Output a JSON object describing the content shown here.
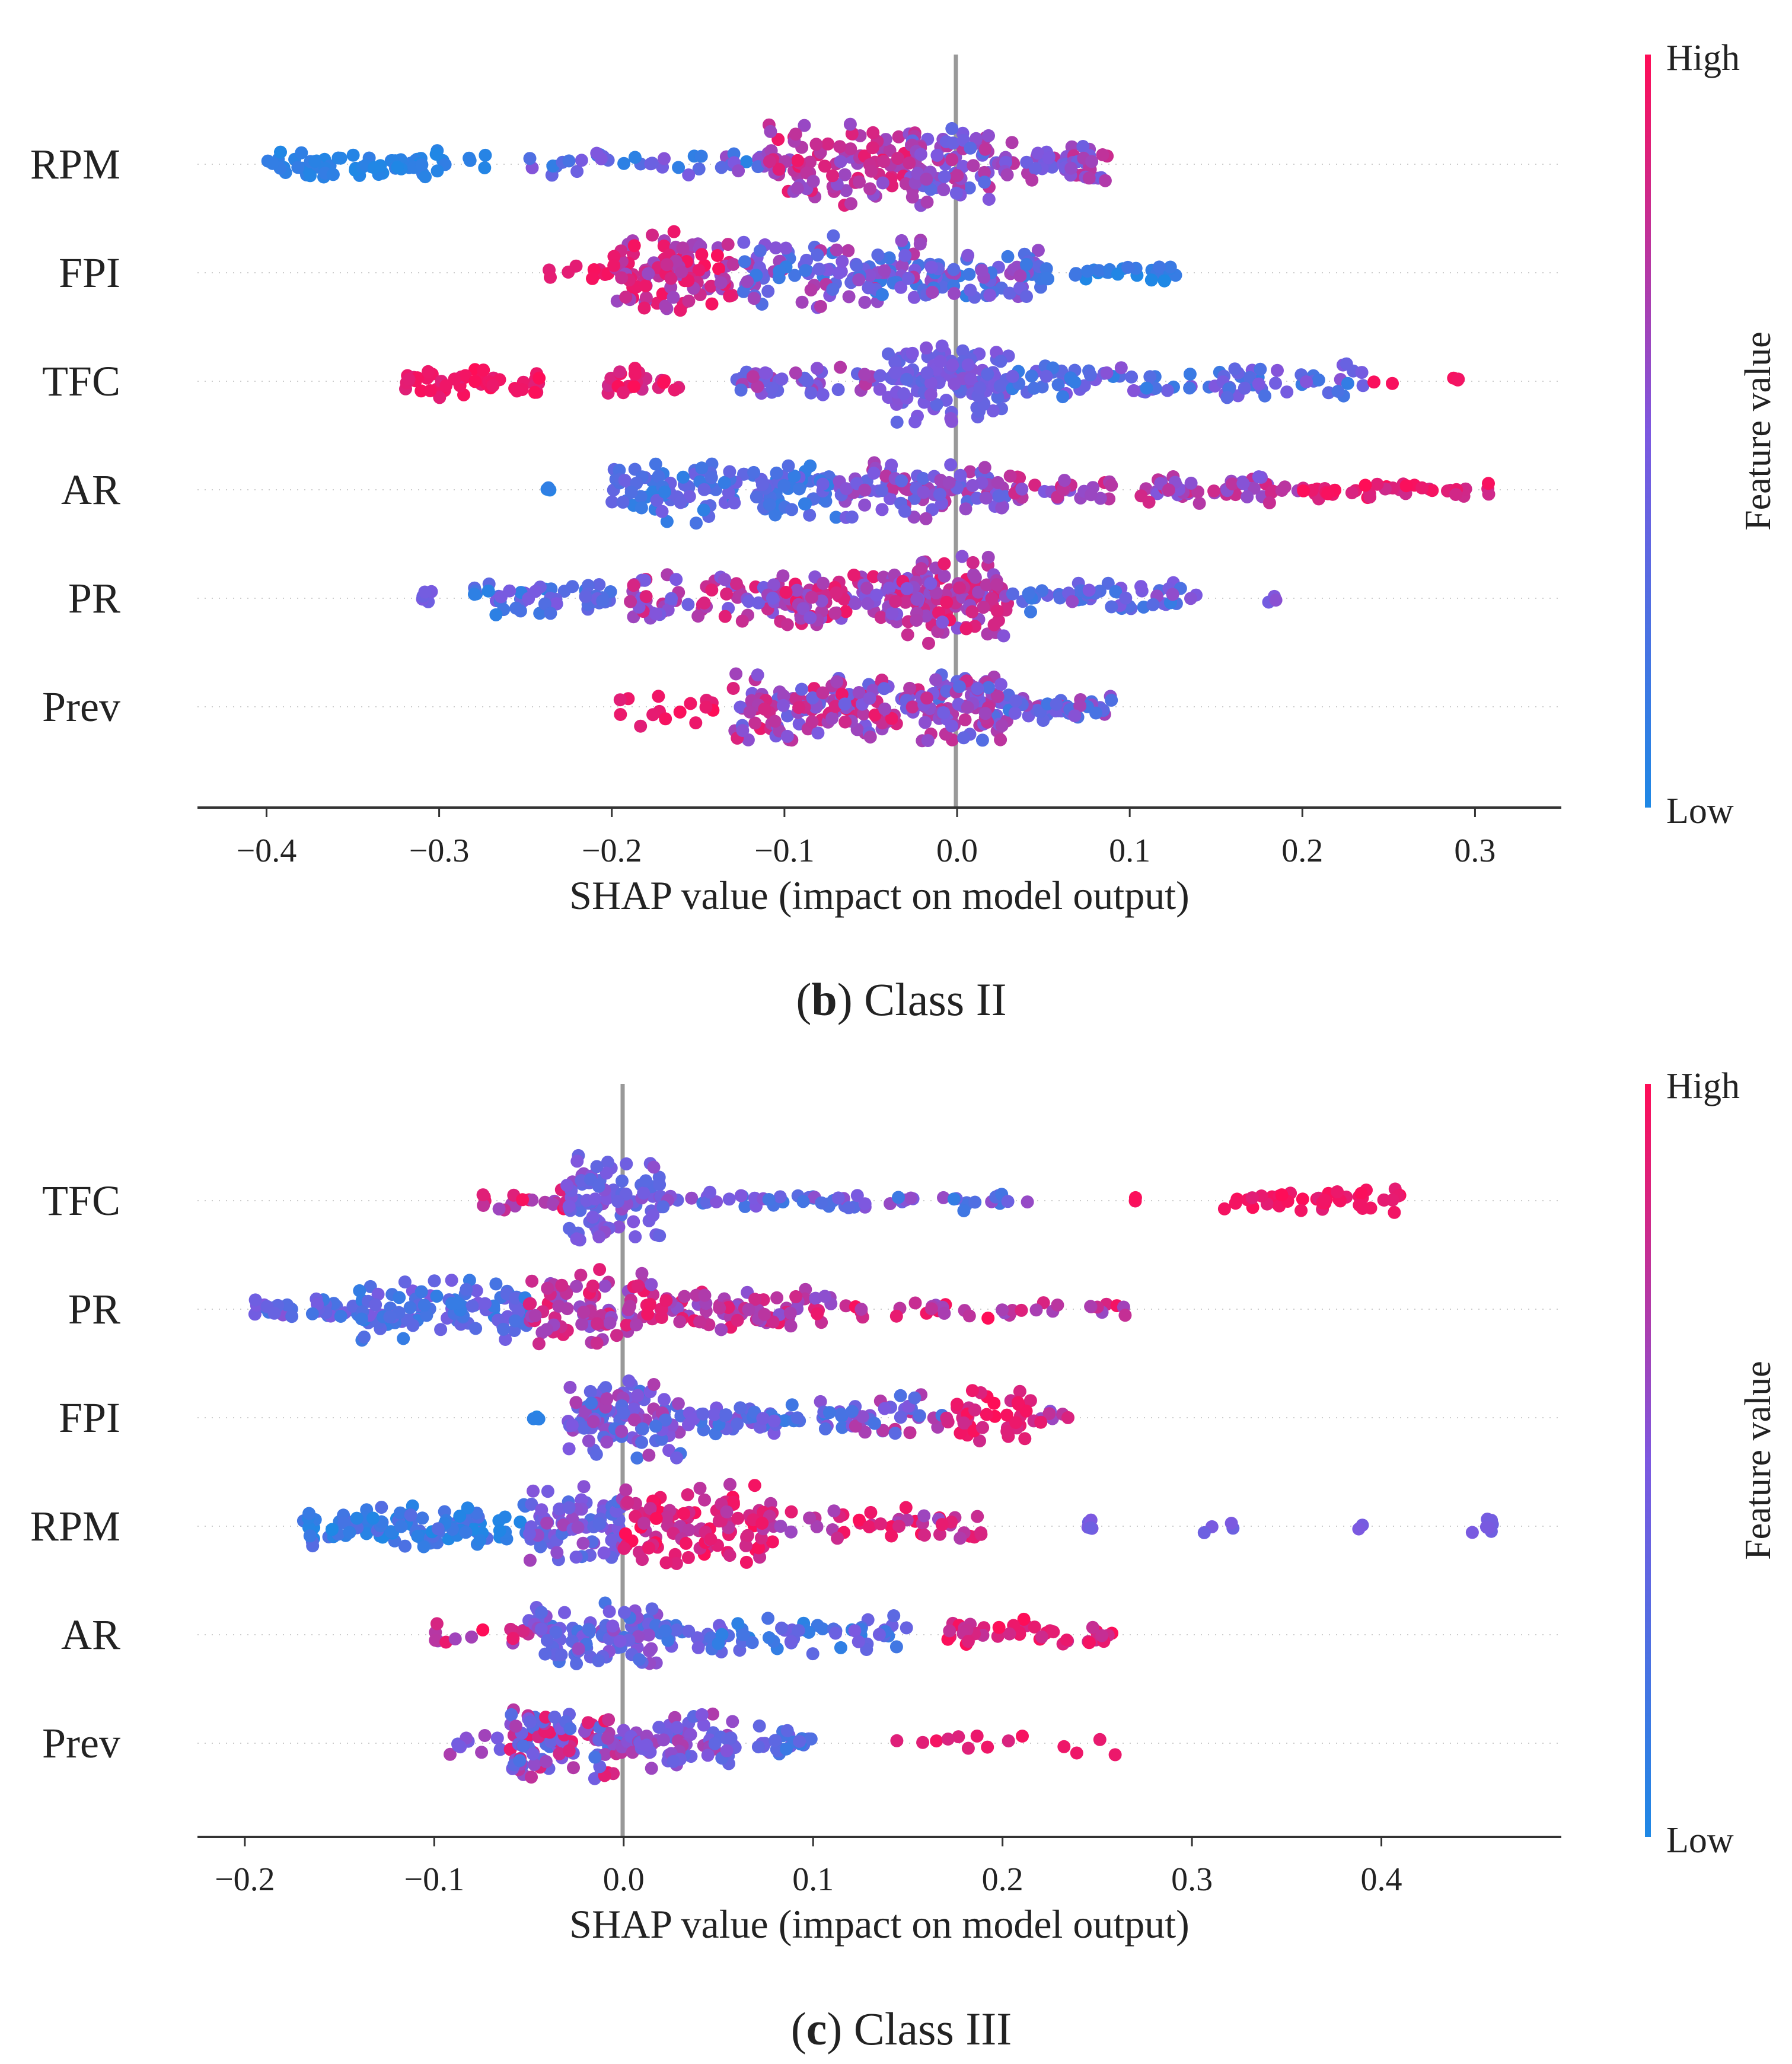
{
  "colors": {
    "low": "#1e88e5",
    "high": "#ff0d57",
    "zero_line": "#999999"
  },
  "chart_data": [
    {
      "type": "scatter",
      "subtype": "shap-beeswarm",
      "caption_letter": "b",
      "caption_text": ") Class II",
      "caption_open": "(",
      "xlabel": "SHAP value (impact on model output)",
      "xlim": [
        -0.44,
        0.35
      ],
      "xticks": [
        "−0.4",
        "−0.3",
        "−0.2",
        "−0.1",
        "0.0",
        "0.1",
        "0.2",
        "0.3"
      ],
      "xtick_values": [
        -0.4,
        -0.3,
        -0.2,
        -0.1,
        0.0,
        0.1,
        0.2,
        0.3
      ],
      "colorbar": {
        "title": "Feature value",
        "high": "High",
        "low": "Low"
      },
      "features": [
        {
          "name": "RPM",
          "segments": [
            {
              "from": -0.405,
              "to": -0.27,
              "n": 70,
              "w": 0.35,
              "c": [
                0.0,
                0.12
              ]
            },
            {
              "from": -0.25,
              "to": -0.1,
              "n": 45,
              "w": 0.3,
              "c": [
                0.05,
                0.6
              ]
            },
            {
              "from": -0.11,
              "to": -0.02,
              "n": 110,
              "w": 1.0,
              "c": [
                0.55,
                0.95
              ]
            },
            {
              "from": -0.03,
              "to": 0.02,
              "n": 70,
              "w": 0.9,
              "c": [
                0.3,
                0.8
              ]
            },
            {
              "from": 0.02,
              "to": 0.088,
              "n": 55,
              "w": 0.5,
              "c": [
                0.4,
                0.8
              ]
            }
          ]
        },
        {
          "name": "FPI",
          "segments": [
            {
              "from": -0.24,
              "to": -0.2,
              "n": 10,
              "w": 0.2,
              "c": [
                0.85,
                1.0
              ]
            },
            {
              "from": -0.2,
              "to": -0.13,
              "n": 110,
              "w": 0.95,
              "c": [
                0.6,
                0.98
              ]
            },
            {
              "from": -0.13,
              "to": -0.02,
              "n": 110,
              "w": 0.85,
              "c": [
                0.1,
                0.75
              ]
            },
            {
              "from": -0.02,
              "to": 0.05,
              "n": 70,
              "w": 0.65,
              "c": [
                0.1,
                0.65
              ]
            },
            {
              "from": 0.05,
              "to": 0.13,
              "n": 28,
              "w": 0.2,
              "c": [
                0.0,
                0.2
              ]
            }
          ]
        },
        {
          "name": "TFC",
          "segments": [
            {
              "from": -0.32,
              "to": -0.24,
              "n": 50,
              "w": 0.4,
              "c": [
                0.88,
                1.0
              ]
            },
            {
              "from": -0.21,
              "to": -0.16,
              "n": 25,
              "w": 0.35,
              "c": [
                0.8,
                1.0
              ]
            },
            {
              "from": -0.13,
              "to": -0.04,
              "n": 45,
              "w": 0.35,
              "c": [
                0.3,
                0.75
              ]
            },
            {
              "from": -0.04,
              "to": 0.03,
              "n": 130,
              "w": 1.0,
              "c": [
                0.3,
                0.55
              ]
            },
            {
              "from": 0.03,
              "to": 0.24,
              "n": 90,
              "w": 0.4,
              "c": [
                0.1,
                0.55
              ]
            },
            {
              "from": 0.24,
              "to": 0.3,
              "n": 5,
              "w": 0.1,
              "c": [
                0.95,
                1.0
              ]
            }
          ]
        },
        {
          "name": "AR",
          "segments": [
            {
              "from": -0.24,
              "to": -0.23,
              "n": 3,
              "w": 0.15,
              "c": [
                0.05,
                0.15
              ]
            },
            {
              "from": -0.2,
              "to": -0.07,
              "n": 130,
              "w": 0.8,
              "c": [
                0.08,
                0.45
              ]
            },
            {
              "from": -0.07,
              "to": 0.03,
              "n": 100,
              "w": 0.75,
              "c": [
                0.3,
                0.75
              ]
            },
            {
              "from": 0.03,
              "to": 0.2,
              "n": 80,
              "w": 0.35,
              "c": [
                0.5,
                0.85
              ]
            },
            {
              "from": 0.2,
              "to": 0.31,
              "n": 40,
              "w": 0.22,
              "c": [
                0.8,
                1.0
              ]
            }
          ]
        },
        {
          "name": "PR",
          "segments": [
            {
              "from": -0.31,
              "to": -0.3,
              "n": 6,
              "w": 0.2,
              "c": [
                0.4,
                0.5
              ]
            },
            {
              "from": -0.28,
              "to": -0.2,
              "n": 55,
              "w": 0.4,
              "c": [
                0.05,
                0.5
              ]
            },
            {
              "from": -0.19,
              "to": -0.1,
              "n": 70,
              "w": 0.55,
              "c": [
                0.4,
                0.9
              ]
            },
            {
              "from": -0.1,
              "to": -0.04,
              "n": 70,
              "w": 0.7,
              "c": [
                0.5,
                0.95
              ]
            },
            {
              "from": -0.04,
              "to": 0.03,
              "n": 120,
              "w": 1.0,
              "c": [
                0.5,
                0.95
              ]
            },
            {
              "from": 0.03,
              "to": 0.14,
              "n": 55,
              "w": 0.35,
              "c": [
                0.1,
                0.6
              ]
            },
            {
              "from": 0.18,
              "to": 0.19,
              "n": 3,
              "w": 0.12,
              "c": [
                0.45,
                0.6
              ]
            }
          ]
        },
        {
          "name": "Prev",
          "segments": [
            {
              "from": -0.205,
              "to": -0.14,
              "n": 16,
              "w": 0.45,
              "c": [
                0.88,
                1.0
              ]
            },
            {
              "from": -0.13,
              "to": -0.02,
              "n": 140,
              "w": 0.8,
              "c": [
                0.35,
                0.95
              ]
            },
            {
              "from": -0.02,
              "to": 0.03,
              "n": 90,
              "w": 0.85,
              "c": [
                0.25,
                0.8
              ]
            },
            {
              "from": 0.03,
              "to": 0.09,
              "n": 45,
              "w": 0.35,
              "c": [
                0.15,
                0.7
              ]
            }
          ]
        }
      ]
    },
    {
      "type": "scatter",
      "subtype": "shap-beeswarm",
      "caption_letter": "c",
      "caption_text": ") Class III",
      "caption_open": "(",
      "xlabel": "SHAP value (impact on model output)",
      "xlim": [
        -0.225,
        0.495
      ],
      "xticks": [
        "−0.2",
        "−0.1",
        "0.0",
        "0.1",
        "0.2",
        "0.3",
        "0.4"
      ],
      "xtick_values": [
        -0.2,
        -0.1,
        0.0,
        0.1,
        0.2,
        0.3,
        0.4
      ],
      "colorbar": {
        "title": "Feature value",
        "high": "High",
        "low": "Low"
      },
      "features": [
        {
          "name": "TFC",
          "segments": [
            {
              "from": -0.075,
              "to": -0.03,
              "n": 20,
              "w": 0.25,
              "c": [
                0.6,
                1.0
              ]
            },
            {
              "from": -0.03,
              "to": 0.02,
              "n": 90,
              "w": 1.0,
              "c": [
                0.3,
                0.6
              ]
            },
            {
              "from": 0.02,
              "to": 0.22,
              "n": 60,
              "w": 0.25,
              "c": [
                0.1,
                0.6
              ]
            },
            {
              "from": 0.27,
              "to": 0.271,
              "n": 2,
              "w": 0.1,
              "c": [
                0.95,
                1.0
              ]
            },
            {
              "from": 0.31,
              "to": 0.41,
              "n": 45,
              "w": 0.35,
              "c": [
                0.88,
                1.0
              ]
            }
          ]
        },
        {
          "name": "PR",
          "segments": [
            {
              "from": -0.195,
              "to": -0.14,
              "n": 35,
              "w": 0.25,
              "c": [
                0.15,
                0.55
              ]
            },
            {
              "from": -0.14,
              "to": -0.05,
              "n": 110,
              "w": 0.75,
              "c": [
                0.08,
                0.5
              ]
            },
            {
              "from": -0.05,
              "to": 0.02,
              "n": 90,
              "w": 0.95,
              "c": [
                0.5,
                0.95
              ]
            },
            {
              "from": 0.02,
              "to": 0.12,
              "n": 80,
              "w": 0.5,
              "c": [
                0.55,
                0.95
              ]
            },
            {
              "from": 0.12,
              "to": 0.265,
              "n": 35,
              "w": 0.25,
              "c": [
                0.6,
                1.0
              ]
            }
          ]
        },
        {
          "name": "FPI",
          "segments": [
            {
              "from": -0.05,
              "to": -0.04,
              "n": 3,
              "w": 0.1,
              "c": [
                0.0,
                0.1
              ]
            },
            {
              "from": -0.03,
              "to": 0.03,
              "n": 110,
              "w": 0.95,
              "c": [
                0.2,
                0.7
              ]
            },
            {
              "from": 0.03,
              "to": 0.12,
              "n": 60,
              "w": 0.4,
              "c": [
                0.1,
                0.6
              ]
            },
            {
              "from": 0.12,
              "to": 0.17,
              "n": 35,
              "w": 0.55,
              "c": [
                0.2,
                0.8
              ]
            },
            {
              "from": 0.17,
              "to": 0.215,
              "n": 40,
              "w": 0.7,
              "c": [
                0.8,
                1.0
              ]
            },
            {
              "from": 0.215,
              "to": 0.235,
              "n": 8,
              "w": 0.2,
              "c": [
                0.5,
                0.95
              ]
            }
          ]
        },
        {
          "name": "RPM",
          "segments": [
            {
              "from": -0.17,
              "to": -0.05,
              "n": 110,
              "w": 0.5,
              "c": [
                0.0,
                0.3
              ]
            },
            {
              "from": -0.05,
              "to": 0.0,
              "n": 80,
              "w": 0.9,
              "c": [
                0.25,
                0.65
              ]
            },
            {
              "from": 0.0,
              "to": 0.08,
              "n": 110,
              "w": 0.95,
              "c": [
                0.7,
                1.0
              ]
            },
            {
              "from": 0.08,
              "to": 0.19,
              "n": 45,
              "w": 0.45,
              "c": [
                0.6,
                1.0
              ]
            },
            {
              "from": 0.245,
              "to": 0.25,
              "n": 5,
              "w": 0.3,
              "c": [
                0.4,
                0.5
              ]
            },
            {
              "from": 0.305,
              "to": 0.325,
              "n": 4,
              "w": 0.2,
              "c": [
                0.4,
                0.5
              ]
            },
            {
              "from": 0.388,
              "to": 0.39,
              "n": 2,
              "w": 0.1,
              "c": [
                0.4,
                0.5
              ]
            },
            {
              "from": 0.448,
              "to": 0.46,
              "n": 8,
              "w": 0.35,
              "c": [
                0.4,
                0.5
              ]
            }
          ]
        },
        {
          "name": "AR",
          "segments": [
            {
              "from": -0.1,
              "to": -0.05,
              "n": 15,
              "w": 0.25,
              "c": [
                0.6,
                1.0
              ]
            },
            {
              "from": -0.05,
              "to": 0.02,
              "n": 90,
              "w": 0.75,
              "c": [
                0.2,
                0.6
              ]
            },
            {
              "from": 0.02,
              "to": 0.15,
              "n": 75,
              "w": 0.45,
              "c": [
                0.05,
                0.5
              ]
            },
            {
              "from": 0.17,
              "to": 0.26,
              "n": 45,
              "w": 0.4,
              "c": [
                0.75,
                1.0
              ]
            }
          ]
        },
        {
          "name": "Prev",
          "segments": [
            {
              "from": -0.095,
              "to": -0.06,
              "n": 10,
              "w": 0.3,
              "c": [
                0.4,
                0.7
              ]
            },
            {
              "from": -0.06,
              "to": 0.0,
              "n": 110,
              "w": 0.9,
              "c": [
                0.2,
                0.95
              ]
            },
            {
              "from": 0.0,
              "to": 0.06,
              "n": 70,
              "w": 0.7,
              "c": [
                0.3,
                0.7
              ]
            },
            {
              "from": 0.07,
              "to": 0.1,
              "n": 25,
              "w": 0.45,
              "c": [
                0.1,
                0.5
              ]
            },
            {
              "from": 0.11,
              "to": 0.26,
              "n": 14,
              "w": 0.3,
              "c": [
                0.85,
                1.0
              ]
            }
          ]
        }
      ]
    }
  ]
}
